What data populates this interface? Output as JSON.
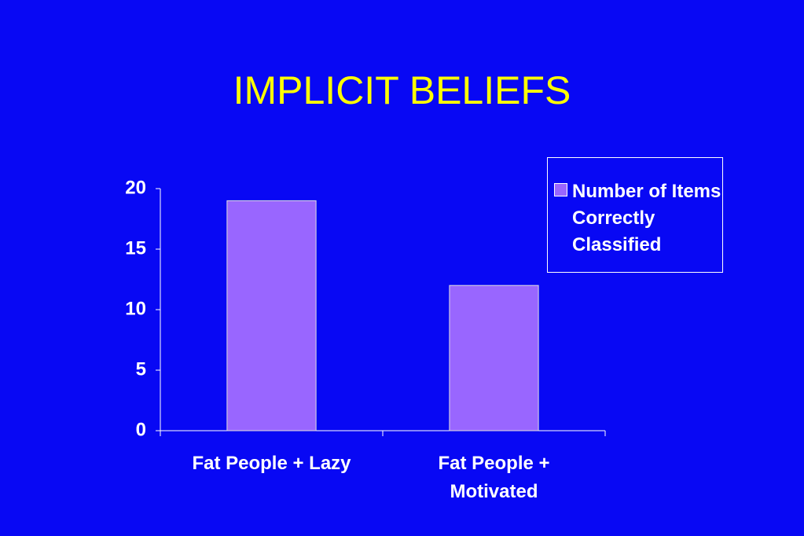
{
  "chart_data": {
    "type": "bar",
    "title": "IMPLICIT BELIEFS",
    "categories": [
      "Fat People + Lazy",
      "Fat People + Motivated"
    ],
    "series": [
      {
        "name": "Number of Items Correctly Classified",
        "color": "#9966ff",
        "values": [
          19,
          12
        ]
      }
    ],
    "ylim": [
      0,
      20
    ],
    "yticks": [
      0,
      5,
      10,
      15,
      20
    ],
    "grid": false,
    "legend": "top-right"
  }
}
